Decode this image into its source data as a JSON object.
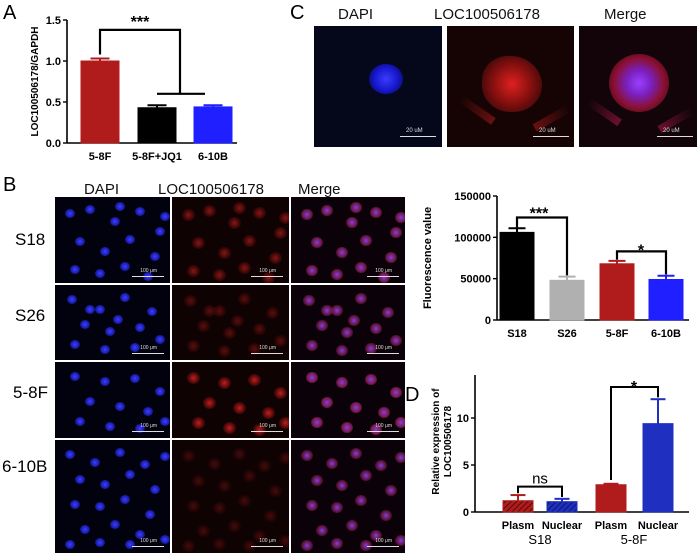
{
  "panels": {
    "a": "A",
    "b": "B",
    "c": "C",
    "d": "D"
  },
  "panel_c": {
    "labels": [
      "DAPI",
      "LOC100506178",
      "Merge"
    ],
    "scale_bar": "20 uM"
  },
  "panel_b": {
    "labels": [
      "DAPI",
      "LOC100506178",
      "Merge"
    ],
    "rows": [
      "S18",
      "S26",
      "5-8F",
      "6-10B"
    ],
    "scale_bar": "100 μm"
  },
  "colors": {
    "dark_red": "#b01c1c",
    "black": "#000000",
    "blue": "#1f1fff",
    "gray": "#b0b0b0",
    "dark_blue": "#1f2fbf"
  },
  "chart_data": [
    {
      "panel": "A",
      "type": "bar",
      "categories": [
        "5-8F",
        "5-8F+JQ1",
        "6-10B"
      ],
      "values": [
        1.0,
        0.43,
        0.44
      ],
      "errors": [
        0.03,
        0.03,
        0.02
      ],
      "colors": [
        "#b01c1c",
        "#000000",
        "#1f1fff"
      ],
      "ylabel": "LOC100506178/GAPDH",
      "ylim": [
        0,
        1.5
      ],
      "yticks": [
        "0.0",
        "0.5",
        "1.0",
        "1.5"
      ],
      "significance": [
        {
          "label": "***"
        }
      ]
    },
    {
      "panel": "B",
      "type": "bar",
      "categories": [
        "S18",
        "S26",
        "5-8F",
        "6-10B"
      ],
      "values": [
        106000,
        48000,
        68000,
        49000
      ],
      "errors": [
        5000,
        4500,
        3500,
        4500
      ],
      "colors": [
        "#000000",
        "#b0b0b0",
        "#b01c1c",
        "#1f1fff"
      ],
      "ylabel": "Fluorescence value",
      "ylim": [
        0,
        150000
      ],
      "yticks": [
        "0",
        "50000",
        "100000",
        "150000"
      ],
      "significance": [
        {
          "label": "***"
        },
        {
          "label": "*"
        }
      ]
    },
    {
      "panel": "D",
      "type": "bar",
      "categories": [
        "Plasm",
        "Nuclear",
        "Plasm",
        "Nuclear"
      ],
      "groups": [
        "S18",
        "5-8F"
      ],
      "values": [
        1.2,
        1.1,
        2.9,
        9.4
      ],
      "errors": [
        0.6,
        0.3,
        0.1,
        2.6
      ],
      "colors": [
        "#b01c1c",
        "#1f2fbf",
        "#b01c1c",
        "#1f2fbf"
      ],
      "hatched": [
        true,
        true,
        false,
        false
      ],
      "ylabel": "Relative expression of LOC100506178",
      "ylim": [
        0,
        15
      ],
      "yticks": [
        "0",
        "5",
        "10",
        "15"
      ],
      "significance": [
        {
          "label": "ns"
        },
        {
          "label": "*"
        }
      ]
    }
  ]
}
